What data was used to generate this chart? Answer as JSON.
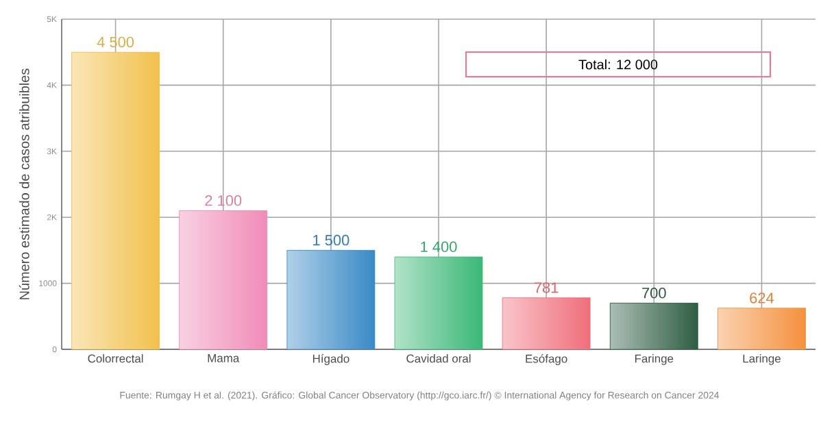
{
  "chart_data": {
    "type": "bar",
    "ylabel": "Número estimado de casos atribuibles",
    "categories": [
      "Colorrectal",
      "Mama",
      "Hígado",
      "Cavidad oral",
      "Esófago",
      "Faringe",
      "Laringe"
    ],
    "values": [
      4500,
      2100,
      1500,
      1400,
      781,
      700,
      624
    ],
    "colors": [
      "#f2c14e",
      "#f08cb8",
      "#3a8ac6",
      "#3cb878",
      "#ef6f7a",
      "#2f5e44",
      "#f5913e"
    ],
    "value_labels": [
      "4 500",
      "2 100",
      "1 500",
      "1 400",
      "781",
      "700",
      "624"
    ],
    "ylim": [
      0,
      5000
    ],
    "yticks": [
      0,
      1000,
      {
        "value": 2000,
        "label": "2K"
      },
      {
        "value": 3000,
        "label": "3K"
      },
      {
        "value": 4000,
        "label": "4K"
      },
      {
        "value": 5000,
        "label": "5K"
      }
    ],
    "grid": true,
    "annotations": [
      "Total: 12 000",
      "Fuente: Rumgay H et al. (2021). Gráfico: Global Cancer Observatory (http://gco.iarc.fr/) © International Agency for Research on Cancer 2024"
    ]
  }
}
